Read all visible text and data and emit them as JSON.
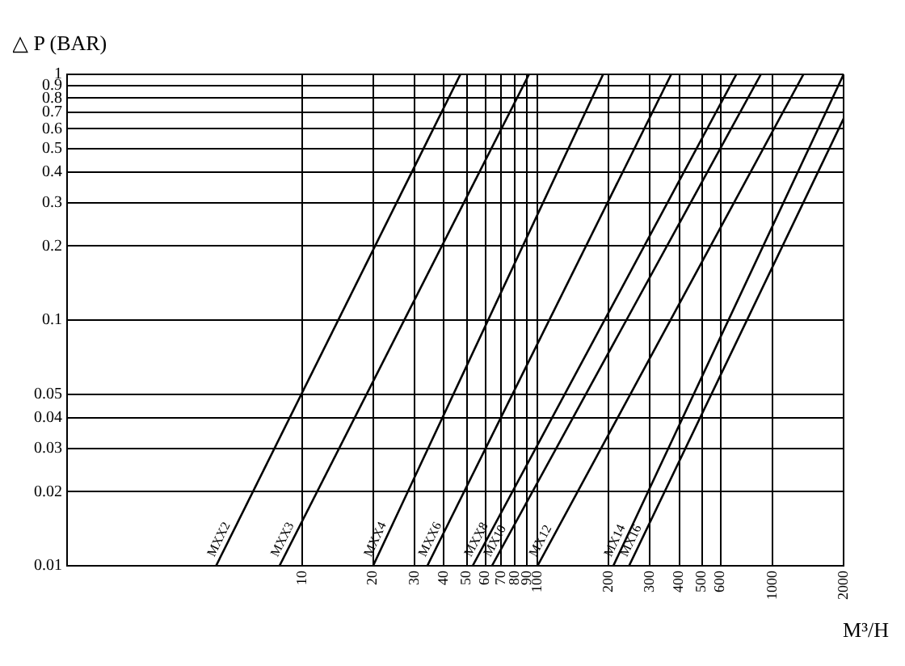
{
  "chart_data": {
    "type": "line",
    "ylabel": "△ P (BAR)",
    "xlabel": "M³/H",
    "log": "xy",
    "grid": true,
    "legend": false,
    "marker": "none",
    "line_style": "solid",
    "xlim": [
      1,
      2000
    ],
    "xticks": [
      10,
      20,
      30,
      40,
      50,
      60,
      70,
      80,
      90,
      100,
      200,
      300,
      400,
      500,
      600,
      1000,
      2000
    ],
    "ylim": [
      0.01,
      1
    ],
    "yticks": [
      0.01,
      0.02,
      0.03,
      0.04,
      0.05,
      0.1,
      0.2,
      0.3,
      0.4,
      0.5,
      0.6,
      0.7,
      0.8,
      0.9,
      1
    ],
    "series": [
      {
        "name": "MXX2",
        "color": "#000000",
        "x": [
          4.3,
          47
        ],
        "values": [
          0.01,
          1
        ]
      },
      {
        "name": "MXX3",
        "color": "#000000",
        "x": [
          8,
          92
        ],
        "values": [
          0.01,
          1
        ]
      },
      {
        "name": "MXX4",
        "color": "#000000",
        "x": [
          20,
          190
        ],
        "values": [
          0.01,
          1
        ]
      },
      {
        "name": "MXX6",
        "color": "#000000",
        "x": [
          34,
          370
        ],
        "values": [
          0.01,
          1
        ]
      },
      {
        "name": "MXX8",
        "color": "#000000",
        "x": [
          53,
          700
        ],
        "values": [
          0.01,
          1
        ]
      },
      {
        "name": "MX10",
        "color": "#000000",
        "x": [
          64,
          890
        ],
        "values": [
          0.01,
          1
        ]
      },
      {
        "name": "MX12",
        "color": "#000000",
        "x": [
          100,
          1350
        ],
        "values": [
          0.01,
          1
        ]
      },
      {
        "name": "MX14",
        "color": "#000000",
        "x": [
          210,
          2000
        ],
        "values": [
          0.01,
          1
        ]
      },
      {
        "name": "MX16",
        "color": "#000000",
        "x": [
          245,
          2000
        ],
        "values": [
          0.01,
          0.66
        ]
      }
    ]
  }
}
